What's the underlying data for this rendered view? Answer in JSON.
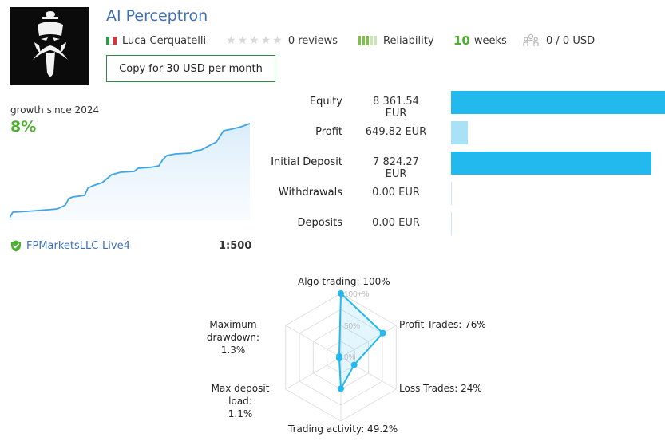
{
  "signal": {
    "title": "AI Perceptron",
    "author": "Luca Cerquatelli",
    "reviews": "0 reviews",
    "reliability": "Reliability",
    "weeks_num": "10",
    "weeks_label": "weeks",
    "subscribers": "0 / 0 USD",
    "copy_button": "Copy for 30 USD per month"
  },
  "growth": {
    "label": "growth since 2024",
    "value": "8%"
  },
  "broker": {
    "name": "FPMarketsLLC-Live4",
    "leverage": "1:500"
  },
  "stats": [
    {
      "label": "Equity",
      "value": "8 361.54 EUR",
      "share": 1.0,
      "color": "#22b9ef"
    },
    {
      "label": "Profit",
      "value": "649.82 EUR",
      "share": 0.077,
      "color": "#a9e1f7"
    },
    {
      "label": "Initial Deposit",
      "value": "7 824.27 EUR",
      "share": 0.935,
      "color": "#22b9ef"
    },
    {
      "label": "Withdrawals",
      "value": "0.00 EUR",
      "share": 0,
      "color": "#22b9ef"
    },
    {
      "label": "Deposits",
      "value": "0.00 EUR",
      "share": 0,
      "color": "#22b9ef"
    }
  ],
  "radar": {
    "labels": {
      "algo": "Algo trading: 100%",
      "profit": "Profit Trades: 76%",
      "loss": "Loss Trades: 24%",
      "activity": "Trading activity: 49.2%",
      "load_name": "Max deposit load:",
      "load_value": "1.1%",
      "drawdown_name": "Maximum drawdown:",
      "drawdown_value": "1.3%"
    },
    "ticks": [
      "100+%",
      "50%",
      "0%"
    ],
    "values": [
      1.0,
      0.76,
      0.24,
      0.492,
      0.011,
      0.013
    ],
    "colors": {
      "line": "#22b9ef",
      "grid": "#e0e0e0"
    }
  },
  "icons": {
    "flag": "italy-flag-icon",
    "stars": "star-icon",
    "reliability": "reliability-bars-icon",
    "subscribers": "subscribers-icon",
    "broker": "verified-shield-icon"
  },
  "colors": {
    "link": "#3d6fb4",
    "growth": "#4caf2f",
    "accent": "#22b9ef"
  }
}
